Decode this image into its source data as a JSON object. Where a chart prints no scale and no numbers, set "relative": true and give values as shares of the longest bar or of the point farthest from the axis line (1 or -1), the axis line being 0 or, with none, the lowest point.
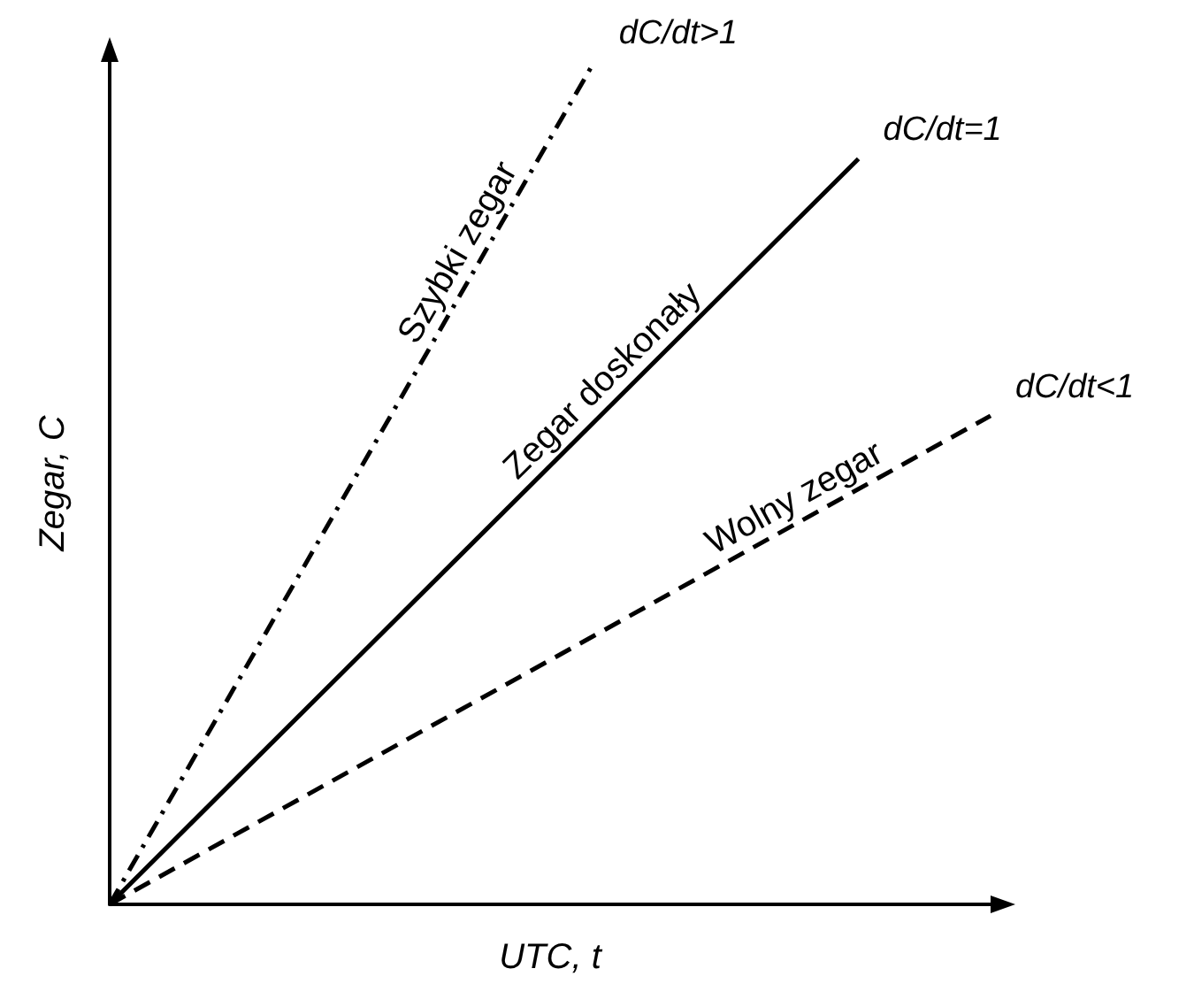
{
  "chart_data": {
    "type": "line",
    "relative": true,
    "xlabel": "UTC, t",
    "ylabel": "Zegar, C",
    "grid": false,
    "legend": false,
    "marker": "none",
    "categories": [
      null,
      null,
      null,
      null,
      null,
      null,
      null,
      null,
      null,
      null,
      null,
      null,
      null,
      null,
      null,
      null,
      null,
      null,
      null,
      null,
      null
    ],
    "series": [
      {
        "name": "Szybki zegar",
        "color": "#000000",
        "line_style": "dashdot",
        "values": [
          0,
          null,
          null,
          null,
          null,
          null,
          null,
          null,
          null,
          null,
          null,
          1,
          null,
          null,
          null,
          null,
          null,
          null,
          null,
          null,
          null
        ]
      },
      {
        "name": "Zegar doskonały",
        "color": "#000000",
        "line_style": "solid",
        "values": [
          0,
          null,
          null,
          null,
          null,
          null,
          null,
          null,
          null,
          null,
          null,
          null,
          null,
          null,
          null,
          null,
          null,
          0.885,
          null,
          null,
          null
        ]
      },
      {
        "name": "Wolny zegar",
        "color": "#000000",
        "line_style": "dashed",
        "values": [
          0,
          null,
          null,
          null,
          null,
          null,
          null,
          null,
          null,
          null,
          null,
          null,
          null,
          null,
          null,
          null,
          null,
          null,
          null,
          null,
          0.58
        ]
      }
    ],
    "annotations": [
      "dC/dt>1",
      "dC/dt=1",
      "dC/dt<1"
    ]
  }
}
